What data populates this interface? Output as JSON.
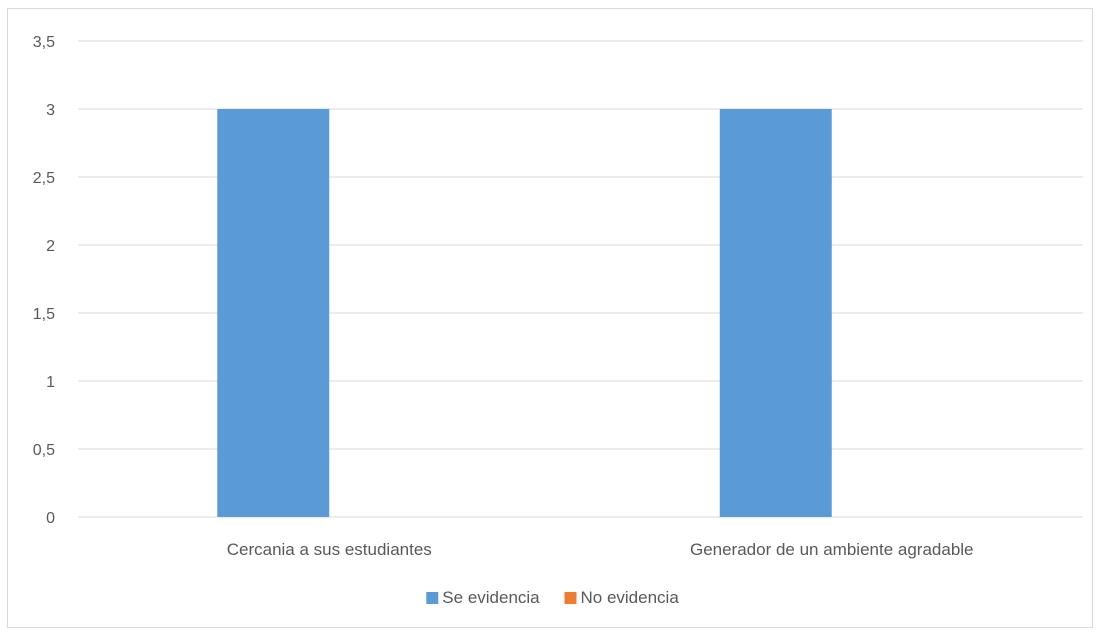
{
  "chart_data": {
    "type": "bar",
    "categories": [
      "Cercania a sus estudiantes",
      "Generador de un ambiente agradable"
    ],
    "series": [
      {
        "name": "Se evidencia",
        "values": [
          3,
          3
        ],
        "color": "#5b9bd5"
      },
      {
        "name": "No evidencia",
        "values": [
          0,
          0
        ],
        "color": "#ed7d31"
      }
    ],
    "ylim": [
      0,
      3.5
    ],
    "yticks": [
      0,
      0.5,
      1,
      1.5,
      2,
      2.5,
      3,
      3.5
    ],
    "ytick_labels": [
      "0",
      "0,5",
      "1",
      "1,5",
      "2",
      "2,5",
      "3",
      "3,5"
    ],
    "grid": true,
    "legend": "bottom"
  }
}
